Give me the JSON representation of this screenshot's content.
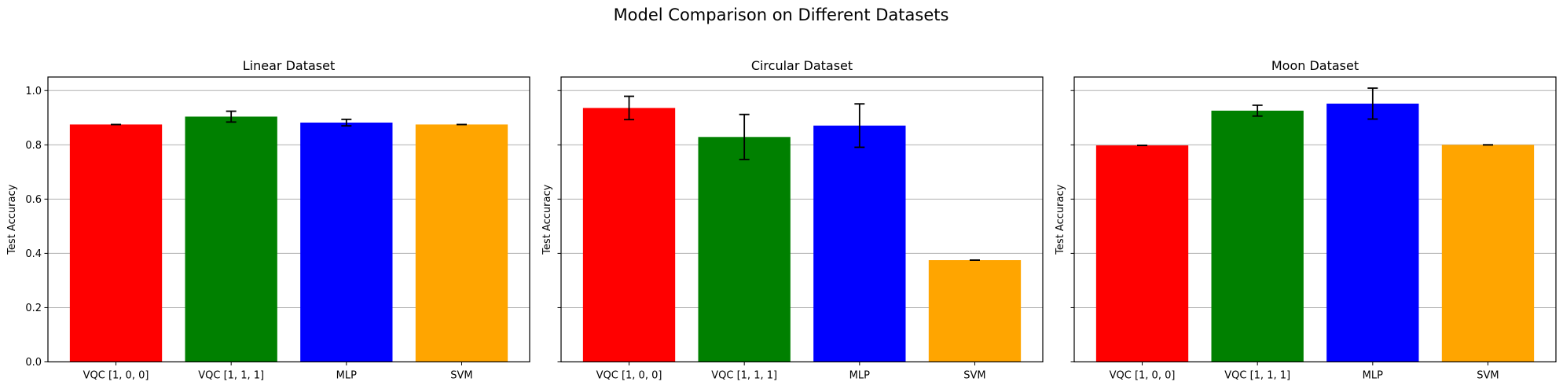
{
  "suptitle": "Model Comparison on Different Datasets",
  "colors": [
    "#ff0000",
    "#008000",
    "#0000ff",
    "#ffa500"
  ],
  "chart_data": [
    {
      "type": "bar",
      "title": "Linear Dataset",
      "ylabel": "Test Accuracy",
      "xlabel": "",
      "categories": [
        "VQC [1, 0, 0]",
        "VQC [1, 1, 1]",
        "MLP",
        "SVM"
      ],
      "values": [
        0.875,
        0.904,
        0.882,
        0.875
      ],
      "errors": [
        0.0,
        0.02,
        0.012,
        0.0
      ],
      "ylim": [
        0,
        1.05
      ],
      "yticks": [
        "0.0",
        "0.2",
        "0.4",
        "0.6",
        "0.8",
        "1.0"
      ],
      "grid": "y"
    },
    {
      "type": "bar",
      "title": "Circular Dataset",
      "ylabel": "Test Accuracy",
      "xlabel": "",
      "categories": [
        "VQC [1, 0, 0]",
        "VQC [1, 1, 1]",
        "MLP",
        "SVM"
      ],
      "values": [
        0.936,
        0.829,
        0.871,
        0.375
      ],
      "errors": [
        0.043,
        0.083,
        0.08,
        0.0
      ],
      "ylim": [
        0,
        1.05
      ],
      "grid": "y"
    },
    {
      "type": "bar",
      "title": "Moon Dataset",
      "ylabel": "Test Accuracy",
      "xlabel": "",
      "categories": [
        "VQC [1, 0, 0]",
        "VQC [1, 1, 1]",
        "MLP",
        "SVM"
      ],
      "values": [
        0.798,
        0.926,
        0.952,
        0.8
      ],
      "errors": [
        0.0,
        0.02,
        0.057,
        0.0
      ],
      "ylim": [
        0,
        1.05
      ],
      "grid": "y"
    }
  ]
}
